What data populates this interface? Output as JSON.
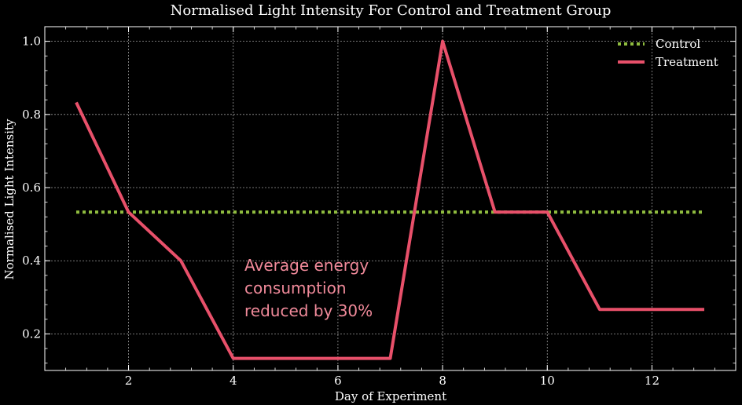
{
  "chart_data": {
    "type": "line",
    "title": "Normalised Light Intensity For Control and Treatment Group",
    "xlabel": "Day of Experiment",
    "ylabel": "Normalised Light Intensity",
    "xlim": [
      0.4,
      13.6
    ],
    "ylim": [
      0.1,
      1.04
    ],
    "xticks": [
      2,
      4,
      6,
      8,
      10,
      12
    ],
    "xtick_labels": [
      "2",
      "4",
      "6",
      "8",
      "10",
      "12"
    ],
    "yticks": [
      0.2,
      0.4,
      0.6,
      0.8,
      1.0
    ],
    "ytick_labels": [
      "0.2",
      "0.4",
      "0.6",
      "0.8",
      "1.0"
    ],
    "grid": true,
    "legend_position": "top-right",
    "x": [
      1,
      2,
      3,
      4,
      5,
      6,
      7,
      8,
      9,
      10,
      11,
      12,
      13
    ],
    "series": [
      {
        "name": "Control",
        "style": "dotted",
        "color": "#8fbc3f",
        "values": [
          0.533,
          0.533,
          0.533,
          0.533,
          0.533,
          0.533,
          0.533,
          0.533,
          0.533,
          0.533,
          0.533,
          0.533,
          0.533
        ]
      },
      {
        "name": "Treatment",
        "style": "solid",
        "color": "#e8506a",
        "values": [
          0.833,
          0.533,
          0.4,
          0.133,
          0.133,
          0.133,
          0.133,
          1.0,
          0.533,
          0.533,
          0.267,
          0.267,
          0.267
        ]
      }
    ],
    "annotation": {
      "lines": [
        "Average energy",
        "consumption",
        "reduced by 30%"
      ],
      "color": "#f08a9a"
    }
  }
}
